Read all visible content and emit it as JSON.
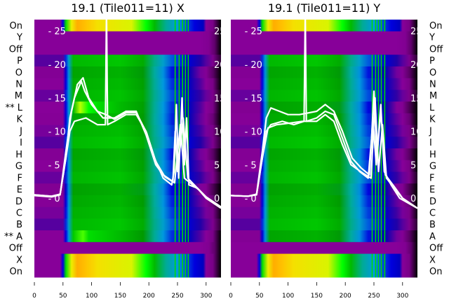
{
  "chart_data": [
    {
      "type": "heatmap",
      "title": "19.1 (Tile011=11) X",
      "row_labels": [
        "On",
        "Y",
        "Off",
        "P",
        "O",
        "N",
        "M",
        "** L",
        "K",
        "J",
        "I",
        "H",
        "G",
        "F",
        "E",
        "D",
        "C",
        "B",
        "** A",
        "Off",
        "X",
        "On"
      ],
      "row_labels_side": "left",
      "row_profiles": [
        "on",
        "off",
        "off",
        "g",
        "g",
        "g",
        "g",
        "l",
        "g",
        "g",
        "g",
        "g",
        "g",
        "g",
        "g",
        "g",
        "g",
        "g",
        "a",
        "off",
        "on",
        "on"
      ],
      "x_ticks": [
        0,
        50,
        100,
        150,
        200,
        250,
        300
      ],
      "xlim": [
        0,
        326
      ],
      "overlay_y_ticks": [
        0,
        5,
        10,
        15,
        20,
        25
      ],
      "overlay_ylim": [
        -11.8,
        26.7
      ],
      "stripes": [
        245,
        252,
        258,
        263,
        268
      ],
      "series": [
        {
          "name": "trace1",
          "points": [
            [
              0,
              0.5
            ],
            [
              30,
              0.3
            ],
            [
              45,
              0.6
            ],
            [
              55,
              6
            ],
            [
              62,
              10
            ],
            [
              70,
              11.5
            ],
            [
              90,
              12
            ],
            [
              110,
              11
            ],
            [
              124,
              11
            ],
            [
              126,
              28
            ],
            [
              128,
              11
            ],
            [
              140,
              11.5
            ],
            [
              160,
              12.5
            ],
            [
              178,
              12.5
            ],
            [
              195,
              10
            ],
            [
              210,
              6
            ],
            [
              225,
              3
            ],
            [
              240,
              2
            ],
            [
              244,
              4
            ],
            [
              248,
              14
            ],
            [
              252,
              3
            ],
            [
              258,
              15
            ],
            [
              262,
              5
            ],
            [
              266,
              12
            ],
            [
              270,
              2
            ],
            [
              285,
              1.5
            ],
            [
              300,
              0
            ],
            [
              326,
              -1.5
            ]
          ]
        },
        {
          "name": "trace2",
          "points": [
            [
              0,
              0.5
            ],
            [
              30,
              0.3
            ],
            [
              45,
              0.6
            ],
            [
              55,
              6
            ],
            [
              62,
              12
            ],
            [
              70,
              15
            ],
            [
              82,
              17.5
            ],
            [
              88,
              16
            ],
            [
              100,
              14
            ],
            [
              120,
              12
            ],
            [
              140,
              12
            ],
            [
              160,
              13
            ],
            [
              178,
              13
            ],
            [
              195,
              9.5
            ],
            [
              212,
              5
            ],
            [
              225,
              3.5
            ],
            [
              242,
              2.5
            ],
            [
              246,
              10
            ],
            [
              250,
              4
            ],
            [
              260,
              12
            ],
            [
              268,
              3
            ],
            [
              285,
              1.5
            ],
            [
              300,
              0.2
            ],
            [
              326,
              -1.3
            ]
          ]
        },
        {
          "name": "trace3",
          "points": [
            [
              0,
              0.4
            ],
            [
              30,
              0.2
            ],
            [
              45,
              0.5
            ],
            [
              55,
              7
            ],
            [
              65,
              13
            ],
            [
              75,
              17
            ],
            [
              85,
              18
            ],
            [
              95,
              15
            ],
            [
              110,
              13
            ],
            [
              125,
              12.5
            ],
            [
              140,
              11.8
            ],
            [
              160,
              12.8
            ],
            [
              178,
              12.8
            ],
            [
              196,
              9.8
            ],
            [
              212,
              5.5
            ],
            [
              228,
              3.2
            ],
            [
              245,
              2.3
            ],
            [
              255,
              11
            ],
            [
              262,
              3
            ],
            [
              288,
              1.2
            ],
            [
              300,
              0.1
            ],
            [
              326,
              -1.4
            ]
          ]
        }
      ]
    },
    {
      "type": "heatmap",
      "title": "19.1 (Tile011=11) Y",
      "row_labels": [
        "On",
        "Y",
        "Off",
        "P",
        "O",
        "N",
        "M",
        "L",
        "K",
        "J",
        "I",
        "H",
        "G",
        "F",
        "E",
        "D",
        "C",
        "B",
        "A",
        "Off",
        "X",
        "On"
      ],
      "row_labels_side": "right",
      "row_profiles": [
        "on",
        "off",
        "off",
        "g",
        "g",
        "g",
        "g",
        "g",
        "g",
        "g",
        "g",
        "g",
        "g",
        "g",
        "g",
        "g",
        "g",
        "g",
        "g",
        "off",
        "on",
        "on"
      ],
      "x_ticks": [
        0,
        50,
        100,
        150,
        200,
        250,
        300
      ],
      "xlim": [
        0,
        326
      ],
      "overlay_y_ticks": [
        0,
        5,
        10,
        15,
        20,
        25
      ],
      "overlay_ylim": [
        -11.8,
        26.7
      ],
      "stripes": [
        246,
        252,
        257,
        262,
        268
      ],
      "series": [
        {
          "name": "trace1",
          "points": [
            [
              0,
              0.4
            ],
            [
              30,
              0.3
            ],
            [
              45,
              0.6
            ],
            [
              55,
              6
            ],
            [
              62,
              10
            ],
            [
              70,
              11
            ],
            [
              90,
              11.5
            ],
            [
              110,
              11
            ],
            [
              128,
              11.5
            ],
            [
              130,
              28
            ],
            [
              132,
              11.5
            ],
            [
              150,
              12
            ],
            [
              165,
              13
            ],
            [
              180,
              12.5
            ],
            [
              195,
              9
            ],
            [
              210,
              5.5
            ],
            [
              225,
              4
            ],
            [
              240,
              3
            ],
            [
              246,
              9
            ],
            [
              250,
              16
            ],
            [
              255,
              6
            ],
            [
              262,
              14
            ],
            [
              268,
              4
            ],
            [
              280,
              2
            ],
            [
              295,
              0
            ],
            [
              326,
              -1.5
            ]
          ]
        },
        {
          "name": "trace2",
          "points": [
            [
              0,
              0.4
            ],
            [
              30,
              0.3
            ],
            [
              45,
              0.6
            ],
            [
              55,
              7
            ],
            [
              62,
              12
            ],
            [
              70,
              13.5
            ],
            [
              85,
              13
            ],
            [
              100,
              12.5
            ],
            [
              120,
              12.5
            ],
            [
              150,
              13
            ],
            [
              165,
              14
            ],
            [
              180,
              13
            ],
            [
              195,
              10
            ],
            [
              212,
              6
            ],
            [
              228,
              4.5
            ],
            [
              242,
              3.5
            ],
            [
              248,
              12
            ],
            [
              254,
              5
            ],
            [
              262,
              13
            ],
            [
              270,
              3.5
            ],
            [
              285,
              1.8
            ],
            [
              300,
              0
            ],
            [
              326,
              -1.5
            ]
          ]
        },
        {
          "name": "trace3",
          "points": [
            [
              0,
              0.4
            ],
            [
              30,
              0.3
            ],
            [
              45,
              0.5
            ],
            [
              55,
              6
            ],
            [
              65,
              10.5
            ],
            [
              80,
              11
            ],
            [
              100,
              11.2
            ],
            [
              125,
              11.5
            ],
            [
              150,
              11.5
            ],
            [
              165,
              12.5
            ],
            [
              180,
              11.5
            ],
            [
              195,
              8
            ],
            [
              210,
              5
            ],
            [
              230,
              3.8
            ],
            [
              245,
              3
            ],
            [
              252,
              15
            ],
            [
              258,
              4
            ],
            [
              265,
              11
            ],
            [
              272,
              3
            ],
            [
              290,
              1
            ],
            [
              300,
              0
            ],
            [
              326,
              -1.5
            ]
          ]
        }
      ]
    }
  ]
}
